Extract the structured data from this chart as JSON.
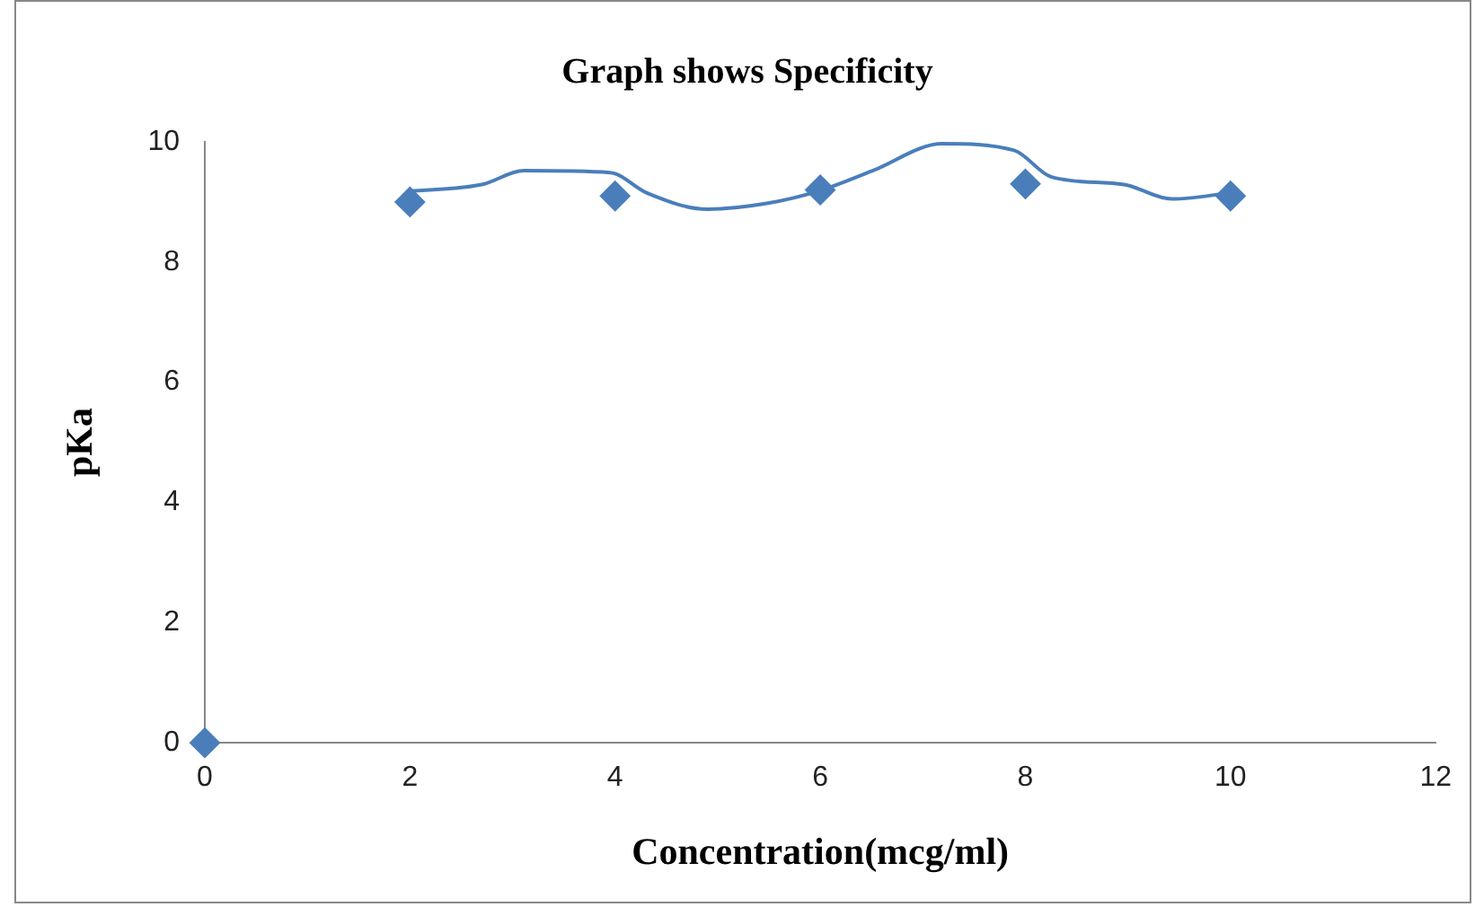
{
  "chart_data": {
    "type": "scatter",
    "title": "Graph shows Specificity",
    "xlabel": "Concentration(mcg/ml)",
    "ylabel": "pKa",
    "xlim": [
      0,
      12
    ],
    "xticks": [
      0,
      2,
      4,
      6,
      8,
      10,
      12
    ],
    "ylim": [
      0,
      10
    ],
    "yticks": [
      0,
      2,
      4,
      6,
      8,
      10
    ],
    "grid": false,
    "legend": false,
    "series": [
      {
        "color": "#4a7ebb",
        "marker": "diamond",
        "x": [
          0,
          2,
          4,
          6,
          8,
          10
        ],
        "values": [
          0,
          9.0,
          9.1,
          9.2,
          9.3,
          9.1
        ]
      },
      {
        "type": "line",
        "color": "#4a7ebb",
        "marker": "none",
        "x": [
          1.99,
          2.7,
          3.11,
          3.95,
          4.31,
          4.9,
          5.49,
          5.98,
          6.51,
          7.19,
          7.89,
          8.25,
          8.96,
          9.43,
          10.0
        ],
        "values": [
          9.18,
          9.29,
          9.52,
          9.49,
          9.15,
          8.88,
          8.98,
          9.18,
          9.52,
          9.97,
          9.86,
          9.42,
          9.29,
          9.05,
          9.15
        ]
      }
    ]
  }
}
